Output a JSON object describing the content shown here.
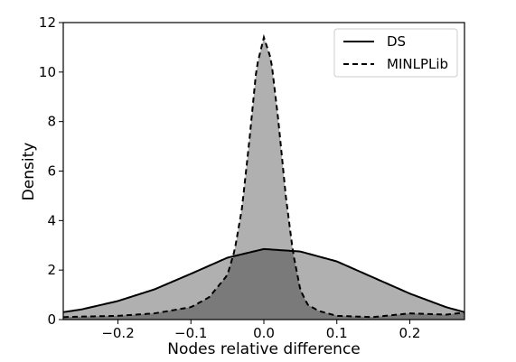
{
  "chart_data": {
    "type": "area",
    "title": "",
    "xlabel": "Nodes relative difference",
    "ylabel": "Density",
    "xlim": [
      -0.275,
      0.275
    ],
    "ylim": [
      0,
      12
    ],
    "xticks": [
      -0.2,
      -0.1,
      0.0,
      0.1,
      0.2
    ],
    "xtick_labels": [
      "−0.2",
      "−0.1",
      "0.0",
      "0.1",
      "0.2"
    ],
    "yticks": [
      0,
      2,
      4,
      6,
      8,
      10,
      12
    ],
    "ytick_labels": [
      "0",
      "2",
      "4",
      "6",
      "8",
      "10",
      "12"
    ],
    "grid": false,
    "legend_position": "top-right",
    "series": [
      {
        "name": "DS",
        "line_style": "solid",
        "x": [
          -0.275,
          -0.25,
          -0.2,
          -0.15,
          -0.1,
          -0.05,
          0.0,
          0.05,
          0.1,
          0.15,
          0.2,
          0.25,
          0.275
        ],
        "y": [
          0.3,
          0.41,
          0.75,
          1.22,
          1.85,
          2.5,
          2.85,
          2.75,
          2.35,
          1.7,
          1.05,
          0.5,
          0.3
        ]
      },
      {
        "name": "MINLPLib",
        "line_style": "dashed",
        "x": [
          -0.275,
          -0.25,
          -0.2,
          -0.15,
          -0.1,
          -0.075,
          -0.05,
          -0.04,
          -0.03,
          -0.02,
          -0.01,
          0.0,
          0.01,
          0.02,
          0.03,
          0.04,
          0.05,
          0.06,
          0.075,
          0.1,
          0.15,
          0.2,
          0.25,
          0.275
        ],
        "y": [
          0.1,
          0.12,
          0.15,
          0.25,
          0.5,
          0.9,
          1.8,
          2.8,
          4.5,
          7.2,
          10.2,
          11.4,
          10.5,
          8.0,
          5.0,
          2.7,
          1.2,
          0.6,
          0.35,
          0.15,
          0.1,
          0.25,
          0.2,
          0.28
        ]
      }
    ],
    "colors": {
      "fill_light": "#b0b0b0",
      "fill_overlap": "#7a7a7a",
      "line": "#000000"
    }
  }
}
